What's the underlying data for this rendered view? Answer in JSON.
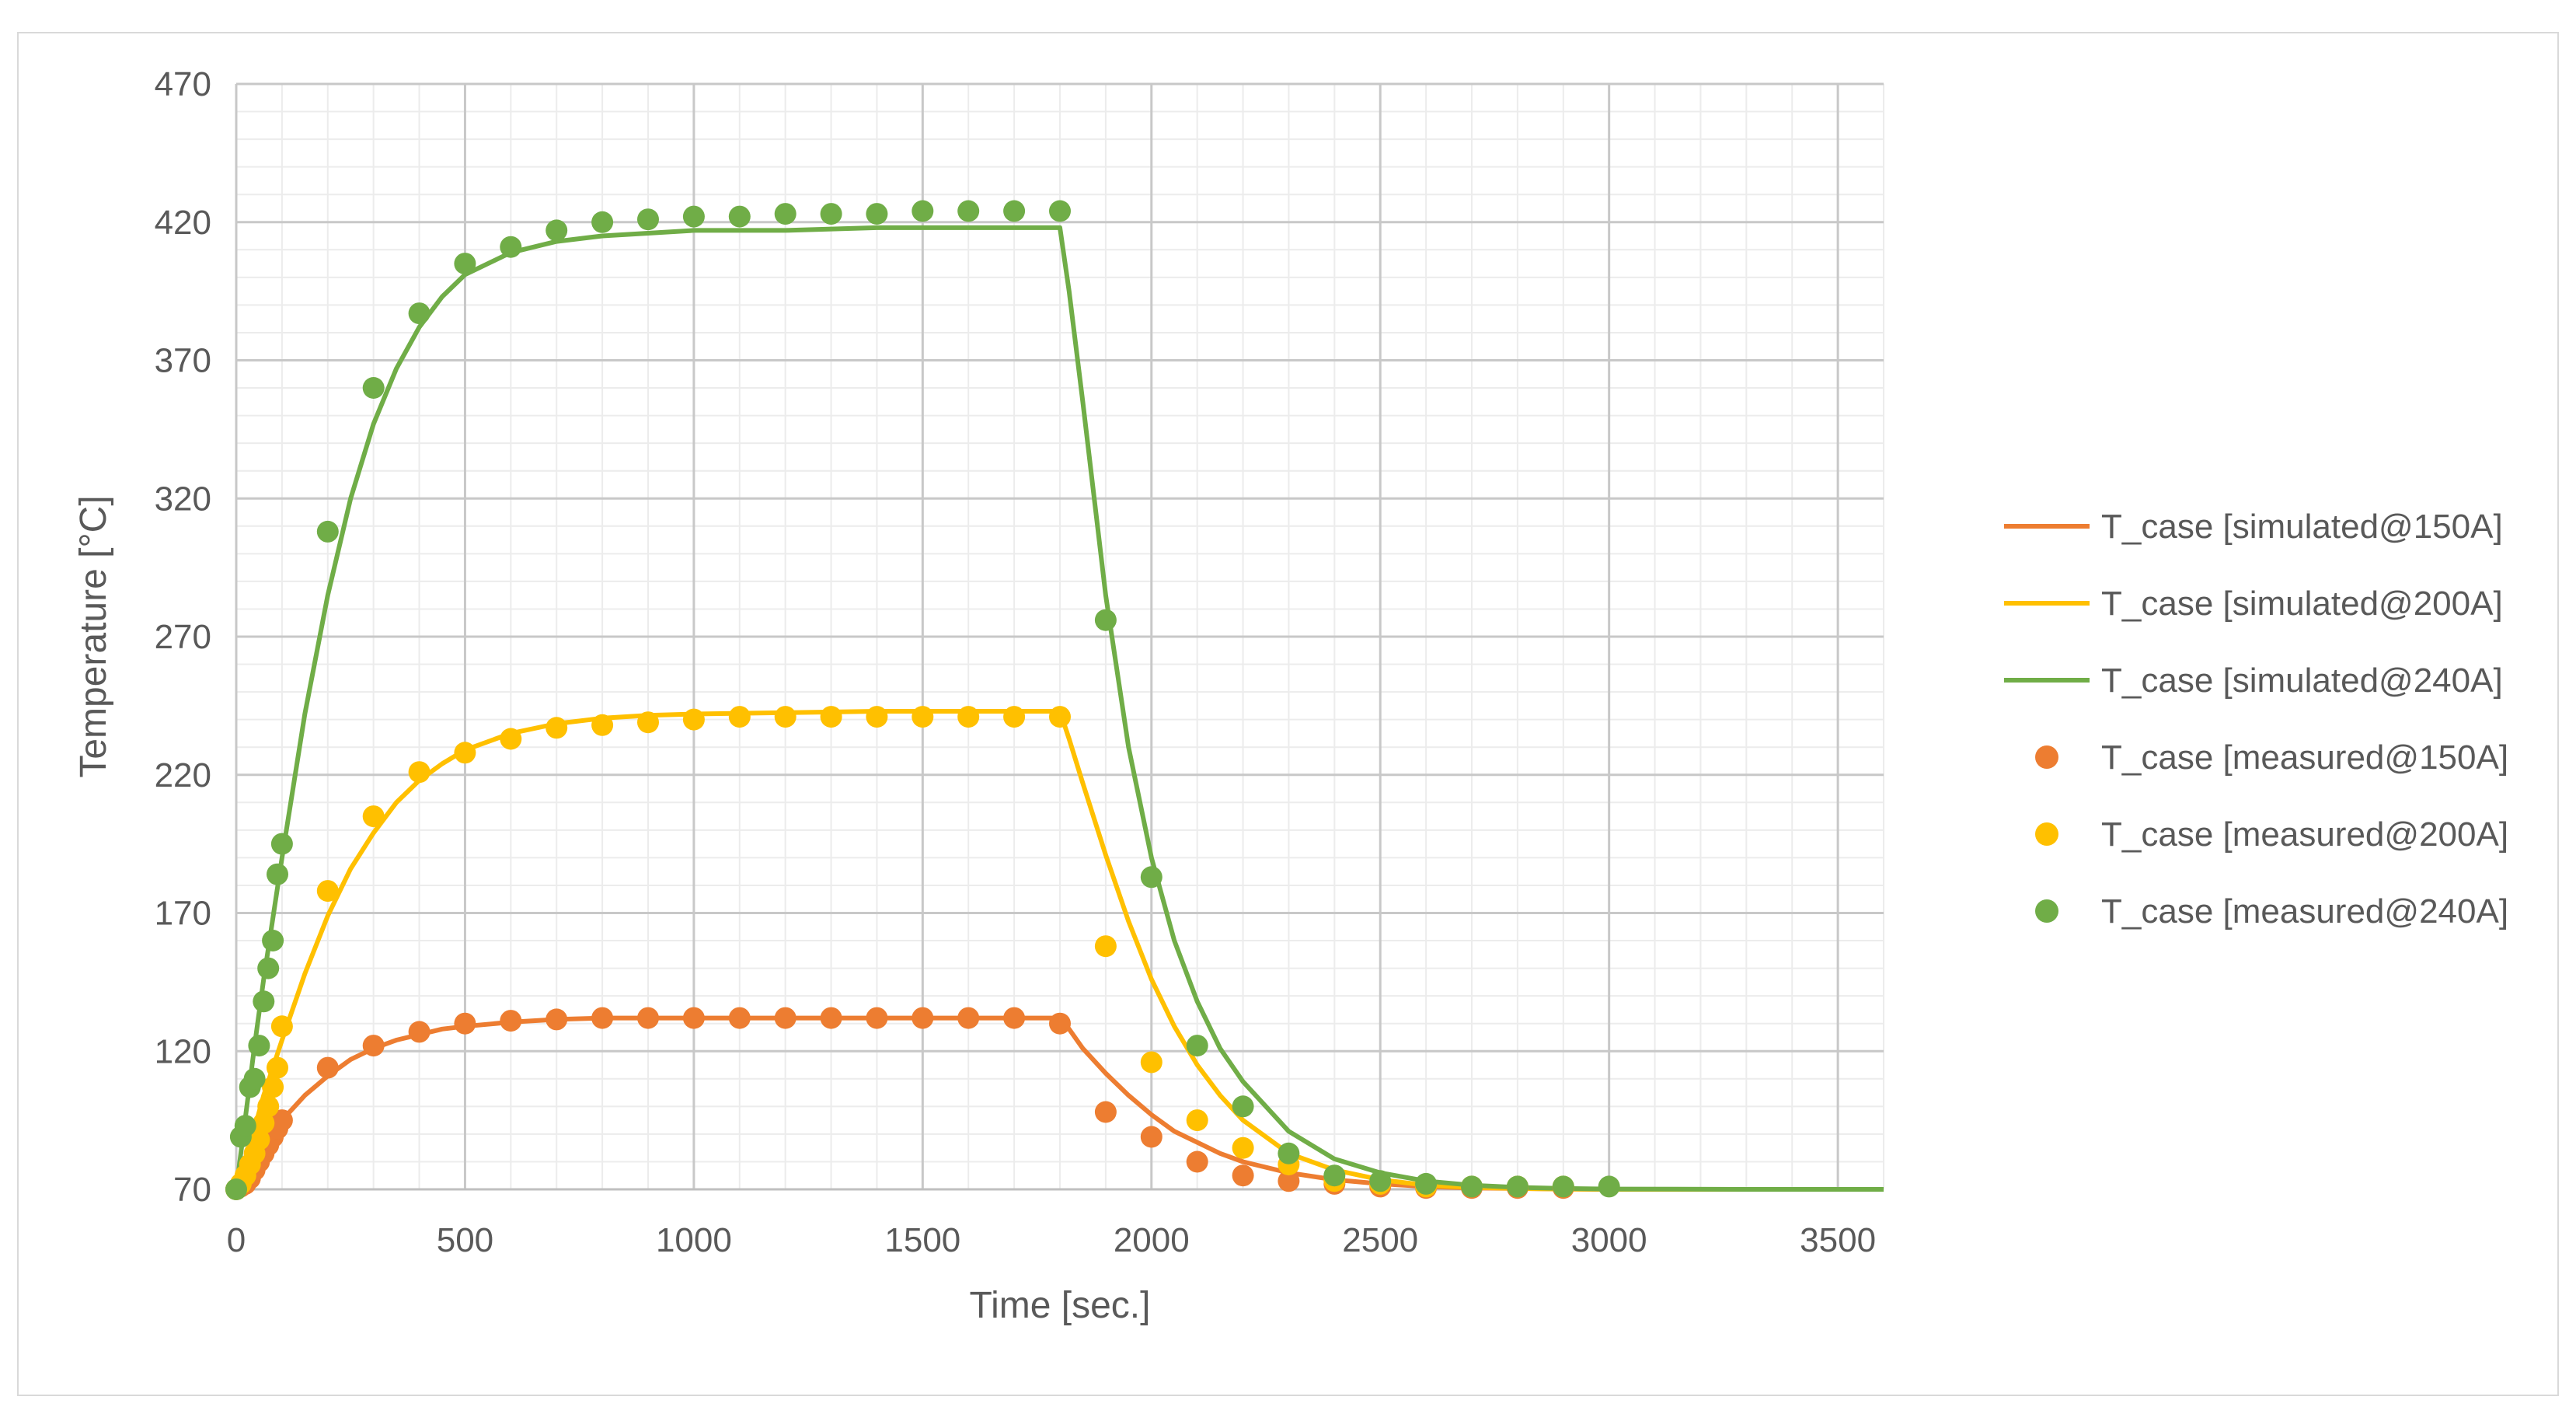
{
  "chart_data": {
    "type": "scatter",
    "title": "",
    "xlabel": "Time [sec.]",
    "ylabel": "Temperature [°C]",
    "xlim": [
      0,
      3600
    ],
    "ylim": [
      70,
      470
    ],
    "x_major_ticks": [
      0,
      500,
      1000,
      1500,
      2000,
      2500,
      3000,
      3500
    ],
    "y_major_ticks": [
      70,
      120,
      170,
      220,
      270,
      320,
      370,
      420,
      470
    ],
    "x_minor_step": 100,
    "y_minor_step": 10,
    "grid": true,
    "legend_position": "right",
    "series": [
      {
        "name": "T_case [simulated@150A]",
        "kind": "line",
        "color": "#ed7d31",
        "x": [
          0,
          20,
          40,
          60,
          80,
          100,
          150,
          200,
          250,
          300,
          350,
          400,
          450,
          500,
          600,
          700,
          800,
          900,
          1000,
          1200,
          1400,
          1600,
          1800,
          1820,
          1850,
          1900,
          1950,
          2000,
          2050,
          2100,
          2150,
          2200,
          2300,
          2400,
          2500,
          2600,
          2700,
          2800,
          2900,
          3000,
          3300,
          3600
        ],
        "y": [
          70,
          75,
          80,
          86,
          91,
          95,
          104,
          111,
          117,
          121,
          124,
          126,
          128,
          129,
          130.5,
          131.5,
          132,
          132,
          132,
          132,
          132,
          132,
          132,
          128,
          121,
          112,
          104,
          97,
          91,
          87,
          83,
          80,
          76,
          73.5,
          72,
          71,
          70.5,
          70.3,
          70.1,
          70,
          70,
          70
        ]
      },
      {
        "name": "T_case [simulated@200A]",
        "kind": "line",
        "color": "#ffc000",
        "x": [
          0,
          20,
          40,
          60,
          80,
          100,
          150,
          200,
          250,
          300,
          350,
          400,
          450,
          500,
          600,
          700,
          800,
          900,
          1000,
          1200,
          1400,
          1600,
          1800,
          1820,
          1850,
          1900,
          1950,
          2000,
          2050,
          2100,
          2150,
          2200,
          2300,
          2400,
          2500,
          2600,
          2700,
          2800,
          2900,
          3000,
          3300,
          3600
        ],
        "y": [
          70,
          80,
          92,
          104,
          114,
          124,
          148,
          169,
          186,
          199,
          210,
          218,
          224,
          229,
          235,
          238.5,
          240.5,
          241.5,
          242,
          242.5,
          243,
          243,
          243,
          233,
          217,
          191,
          167,
          146,
          129,
          115,
          104,
          95,
          83,
          77,
          73.5,
          71.5,
          70.7,
          70.3,
          70.1,
          70,
          70,
          70
        ]
      },
      {
        "name": "T_case [simulated@240A]",
        "kind": "line",
        "color": "#70ad47",
        "x": [
          0,
          20,
          40,
          60,
          80,
          100,
          150,
          200,
          250,
          300,
          350,
          400,
          450,
          500,
          600,
          700,
          800,
          900,
          1000,
          1200,
          1400,
          1600,
          1800,
          1820,
          1850,
          1900,
          1950,
          2000,
          2050,
          2100,
          2150,
          2200,
          2300,
          2400,
          2500,
          2600,
          2700,
          2800,
          2900,
          3000,
          3300,
          3600
        ],
        "y": [
          70,
          96,
          122,
          146,
          168,
          190,
          242,
          285,
          320,
          347,
          367,
          382,
          393,
          401,
          409,
          413,
          415,
          416,
          417,
          417,
          418,
          418,
          418,
          395,
          355,
          285,
          230,
          190,
          160,
          138,
          121,
          109,
          91,
          81,
          76,
          73,
          71.5,
          70.7,
          70.3,
          70.1,
          70,
          70
        ]
      },
      {
        "name": "T_case [measured@150A]",
        "kind": "scatter",
        "color": "#ed7d31",
        "x": [
          0,
          10,
          20,
          30,
          40,
          50,
          60,
          70,
          80,
          90,
          100,
          200,
          300,
          400,
          500,
          600,
          700,
          800,
          900,
          1000,
          1100,
          1200,
          1300,
          1400,
          1500,
          1600,
          1700,
          1800,
          1900,
          2000,
          2100,
          2200,
          2300,
          2400,
          2500,
          2600,
          2700,
          2800,
          2900
        ],
        "y": [
          70,
          71,
          72,
          74,
          77,
          80,
          83,
          86,
          89,
          92,
          95,
          114,
          122,
          127,
          130,
          131,
          131.5,
          132,
          132,
          132,
          132,
          132,
          132,
          132,
          132,
          132,
          132,
          130,
          98,
          89,
          80,
          75,
          73,
          72,
          71,
          70.5,
          70.5,
          70.5,
          70.5
        ]
      },
      {
        "name": "T_case [measured@200A]",
        "kind": "scatter",
        "color": "#ffc000",
        "x": [
          0,
          10,
          20,
          30,
          40,
          50,
          60,
          70,
          80,
          90,
          100,
          200,
          300,
          400,
          500,
          600,
          700,
          800,
          900,
          1000,
          1100,
          1200,
          1300,
          1400,
          1500,
          1600,
          1700,
          1800,
          1900,
          2000,
          2100,
          2200,
          2300,
          2400,
          2500,
          2600,
          2700,
          2800,
          2900
        ],
        "y": [
          70,
          72,
          75,
          79,
          83,
          88,
          94,
          100,
          107,
          114,
          129,
          178,
          205,
          221,
          228,
          233,
          237,
          238,
          239,
          240,
          241,
          241,
          241,
          241,
          241,
          241,
          241,
          241,
          158,
          116,
          95,
          85,
          79,
          73,
          72,
          71,
          71,
          71,
          71
        ]
      },
      {
        "name": "T_case [measured@240A]",
        "kind": "scatter",
        "color": "#70ad47",
        "x": [
          0,
          10,
          20,
          30,
          40,
          50,
          60,
          70,
          80,
          90,
          100,
          200,
          300,
          400,
          500,
          600,
          700,
          800,
          900,
          1000,
          1100,
          1200,
          1300,
          1400,
          1500,
          1600,
          1700,
          1800,
          1900,
          2000,
          2100,
          2200,
          2300,
          2400,
          2500,
          2600,
          2700,
          2800,
          2900,
          3000
        ],
        "y": [
          70,
          89,
          93,
          107,
          110,
          122,
          138,
          150,
          160,
          184,
          195,
          308,
          360,
          387,
          405,
          411,
          417,
          420,
          421,
          422,
          422,
          423,
          423,
          423,
          424,
          424,
          424,
          424,
          276,
          183,
          122,
          100,
          83,
          75,
          73,
          72,
          71,
          71,
          71,
          71
        ]
      }
    ]
  }
}
